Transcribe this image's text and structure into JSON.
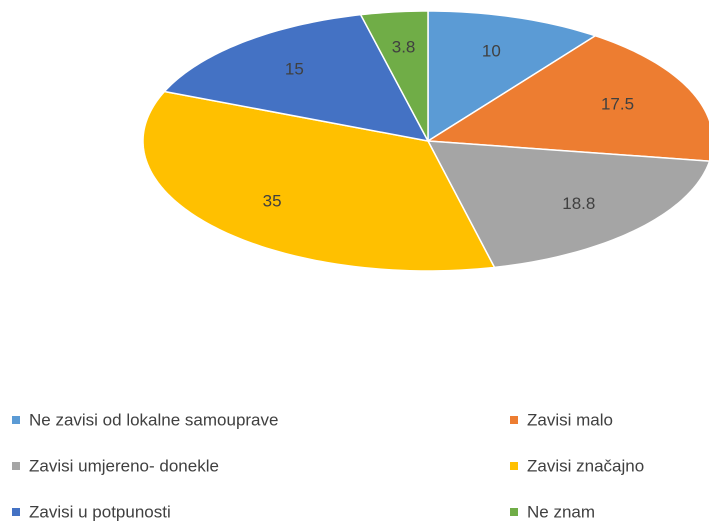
{
  "chart_data": {
    "type": "pie",
    "categories": [
      "Ne zavisi od lokalne samouprave",
      "Zavisi malo",
      "Zavisi umjereno- donekle",
      "Zavisi značajno",
      "Zavisi u potpunosti",
      "Ne znam"
    ],
    "values": [
      10,
      17.5,
      18.8,
      35,
      15,
      3.8
    ],
    "colors": [
      "#5b9bd5",
      "#ed7d31",
      "#a5a5a5",
      "#ffc000",
      "#4472c4",
      "#70ad47"
    ]
  }
}
